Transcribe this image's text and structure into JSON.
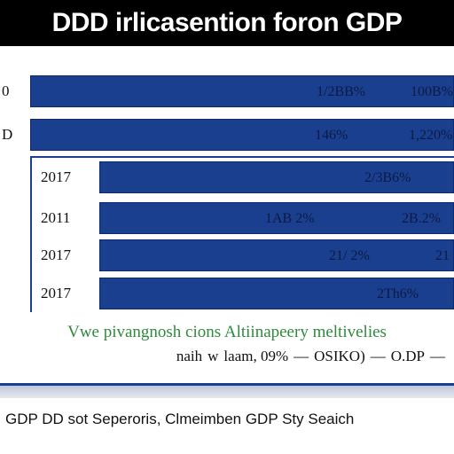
{
  "header": {
    "title": "DDD irlicasention foron GDP"
  },
  "chart_data": {
    "type": "bar",
    "orientation": "horizontal",
    "title": "DDD irlicasention foron GDP",
    "caption": "Vwe pivangnosh cions Altiinapeery meltivelies",
    "categories": [
      "0",
      "D",
      "2017",
      "2011",
      "2017",
      "2017"
    ],
    "value_labels": [
      [
        "1/2BB%",
        "100B%"
      ],
      [
        "146%",
        "1,220%"
      ],
      [
        "2/3B6%"
      ],
      [
        "1AB 2%",
        "2B.2%"
      ],
      [
        "21/ 2%",
        "21"
      ],
      [
        "2Th6%"
      ]
    ],
    "legend": {
      "entries": [
        "naih",
        "w",
        "laam, 09%",
        "—",
        "OSIKO)",
        "—",
        "O.DP",
        "—"
      ],
      "placement": "bottom-right"
    },
    "grid": false
  },
  "footer": {
    "text": "GDP  DD sot Seperoris,  Clmeimben GDP Sty Seaich"
  },
  "colors": {
    "bar": "#1b3f8f",
    "caption": "#2f8a3c",
    "title_bg": "#000000"
  }
}
